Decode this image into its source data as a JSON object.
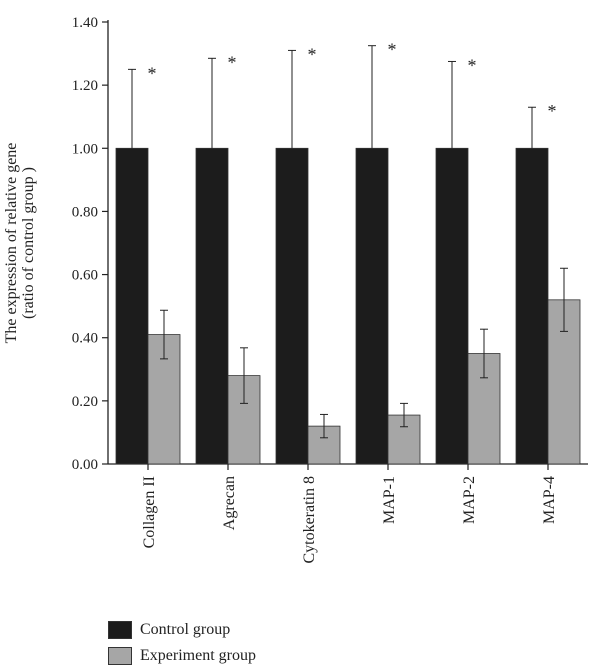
{
  "chart_data": {
    "type": "bar",
    "categories": [
      "Collagen II",
      "Agrecan",
      "Cytokeratin 8",
      "MAP-1",
      "MAP-2",
      "MAP-4"
    ],
    "series": [
      {
        "name": "Control group",
        "color": "#1c1c1c",
        "values": [
          1.0,
          1.0,
          1.0,
          1.0,
          1.0,
          1.0
        ],
        "errors": [
          0.25,
          0.285,
          0.31,
          0.325,
          0.275,
          0.13
        ]
      },
      {
        "name": "Experiment group",
        "color": "#a6a6a6",
        "values": [
          0.41,
          0.28,
          0.12,
          0.155,
          0.35,
          0.52
        ],
        "errors": [
          0.077,
          0.088,
          0.037,
          0.037,
          0.077,
          0.1
        ]
      }
    ],
    "annotations": [
      "*",
      "*",
      "*",
      "*",
      "*",
      "*"
    ],
    "ylabel": "The expression of relative gene\n(ratio of control group )",
    "ylim": [
      0,
      1.4
    ],
    "yticks": [
      "0.00",
      "0.20",
      "0.40",
      "0.60",
      "0.80",
      "1.00",
      "1.20",
      "1.40"
    ],
    "legend_position": "bottom-left",
    "grid": false
  }
}
